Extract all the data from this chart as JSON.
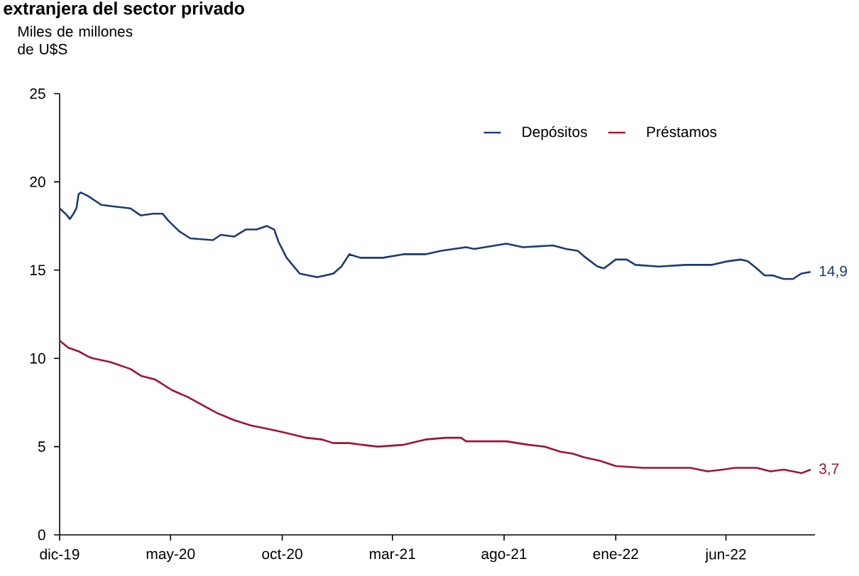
{
  "chart_data": {
    "type": "line",
    "title": "extranjera del sector privado",
    "ylabel": "Miles de millones de U$S",
    "x": [
      "2019-12-01",
      "2019-12-09",
      "2019-12-15",
      "2019-12-20",
      "2019-12-24",
      "2019-12-27",
      "2019-12-30",
      "2020-01-09",
      "2020-01-27",
      "2020-02-15",
      "2020-03-07",
      "2020-03-21",
      "2020-04-07",
      "2020-04-20",
      "2020-04-28",
      "2020-05-13",
      "2020-05-28",
      "2020-06-28",
      "2020-07-09",
      "2020-07-27",
      "2020-08-12",
      "2020-08-27",
      "2020-09-10",
      "2020-09-20",
      "2020-09-26",
      "2020-10-07",
      "2020-10-25",
      "2020-11-18",
      "2020-12-10",
      "2020-12-21",
      "2021-01-01",
      "2021-01-16",
      "2021-02-16",
      "2021-03-16",
      "2021-04-15",
      "2021-05-07",
      "2021-06-10",
      "2021-06-21",
      "2021-08-04",
      "2021-08-27",
      "2021-10-07",
      "2021-10-25",
      "2021-11-10",
      "2021-11-18",
      "2021-12-07",
      "2021-12-16",
      "2022-01-01",
      "2022-01-16",
      "2022-01-28",
      "2022-03-01",
      "2022-04-07",
      "2022-05-13",
      "2022-06-03",
      "2022-06-21",
      "2022-07-01",
      "2022-07-13",
      "2022-07-24",
      "2022-08-04",
      "2022-08-19",
      "2022-09-01",
      "2022-09-12",
      "2022-09-25"
    ],
    "series": [
      {
        "name": "Depósitos",
        "color": "#1b3a78",
        "values": [
          18.5,
          18.2,
          17.9,
          18.2,
          18.5,
          19.3,
          19.4,
          19.2,
          18.7,
          18.6,
          18.5,
          18.1,
          18.2,
          18.2,
          17.8,
          17.2,
          16.8,
          16.7,
          17.0,
          16.9,
          17.3,
          17.3,
          17.5,
          17.3,
          16.6,
          15.7,
          14.8,
          14.6,
          14.8,
          15.2,
          15.9,
          15.7,
          15.7,
          15.9,
          15.9,
          16.1,
          16.3,
          16.2,
          16.5,
          16.3,
          16.4,
          16.2,
          16.1,
          15.8,
          15.2,
          15.1,
          15.6,
          15.6,
          15.3,
          15.2,
          15.3,
          15.3,
          15.5,
          15.6,
          15.5,
          15.1,
          14.7,
          14.7,
          14.5,
          14.5,
          14.8,
          14.9
        ],
        "value_labels": [
          null,
          null,
          null,
          null,
          null,
          null,
          null,
          null,
          null,
          null,
          null,
          null,
          null,
          null,
          null,
          null,
          null,
          null,
          null,
          null,
          null,
          null,
          null,
          null,
          null,
          null,
          null,
          null,
          null,
          null,
          null,
          null,
          null,
          null,
          null,
          null,
          null,
          null,
          null,
          null,
          null,
          null,
          null,
          null,
          null,
          null,
          null,
          null,
          null,
          null,
          null,
          null,
          null,
          null,
          null,
          null,
          null,
          null,
          null,
          null,
          null,
          "14,9"
        ]
      },
      {
        "name": "Préstamos",
        "color": "#a3122f",
        "x": [
          "2019-12-01",
          "2019-12-13",
          "2019-12-27",
          "2020-01-09",
          "2020-01-16",
          "2020-02-08",
          "2020-03-07",
          "2020-03-22",
          "2020-04-10",
          "2020-05-03",
          "2020-05-25",
          "2020-06-16",
          "2020-07-04",
          "2020-07-27",
          "2020-08-19",
          "2020-09-12",
          "2020-10-04",
          "2020-11-03",
          "2020-11-25",
          "2020-12-10",
          "2021-01-01",
          "2021-01-19",
          "2021-02-09",
          "2021-03-16",
          "2021-04-15",
          "2021-05-13",
          "2021-06-03",
          "2021-06-10",
          "2021-06-28",
          "2021-07-13",
          "2021-08-04",
          "2021-09-04",
          "2021-09-25",
          "2021-10-18",
          "2021-11-03",
          "2021-11-18",
          "2021-12-10",
          "2022-01-01",
          "2022-02-07",
          "2022-03-07",
          "2022-04-13",
          "2022-05-07",
          "2022-05-28",
          "2022-06-13",
          "2022-06-28",
          "2022-07-13",
          "2022-08-01",
          "2022-08-19",
          "2022-09-13",
          "2022-09-25"
        ],
        "values": [
          11.0,
          10.6,
          10.4,
          10.1,
          10.0,
          9.8,
          9.4,
          9.0,
          8.8,
          8.2,
          7.8,
          7.3,
          6.9,
          6.5,
          6.2,
          6.0,
          5.8,
          5.5,
          5.4,
          5.2,
          5.2,
          5.1,
          5.0,
          5.1,
          5.4,
          5.5,
          5.5,
          5.3,
          5.3,
          5.3,
          5.3,
          5.1,
          5.0,
          4.7,
          4.6,
          4.4,
          4.2,
          3.9,
          3.8,
          3.8,
          3.8,
          3.6,
          3.7,
          3.8,
          3.8,
          3.8,
          3.6,
          3.7,
          3.5,
          3.7
        ],
        "value_labels": [
          null,
          null,
          null,
          null,
          null,
          null,
          null,
          null,
          null,
          null,
          null,
          null,
          null,
          null,
          null,
          null,
          null,
          null,
          null,
          null,
          null,
          null,
          null,
          null,
          null,
          null,
          null,
          null,
          null,
          null,
          null,
          null,
          null,
          null,
          null,
          null,
          null,
          null,
          null,
          null,
          null,
          null,
          null,
          null,
          null,
          null,
          null,
          null,
          null,
          "3,7"
        ]
      }
    ],
    "xlim": [
      "2019-12-01",
      "2022-10-01"
    ],
    "xticks": [
      {
        "value": "2019-12-01",
        "label": "dic-19"
      },
      {
        "value": "2020-05-01",
        "label": "may-20"
      },
      {
        "value": "2020-10-01",
        "label": "oct-20"
      },
      {
        "value": "2021-03-01",
        "label": "mar-21"
      },
      {
        "value": "2021-08-01",
        "label": "ago-21"
      },
      {
        "value": "2022-01-01",
        "label": "ene-22"
      },
      {
        "value": "2022-06-01",
        "label": "jun-22"
      }
    ],
    "ylim": [
      0,
      25
    ],
    "yticks": [
      0,
      5,
      10,
      15,
      20,
      25
    ],
    "grid": false,
    "legend": "top right",
    "marker": "none"
  }
}
